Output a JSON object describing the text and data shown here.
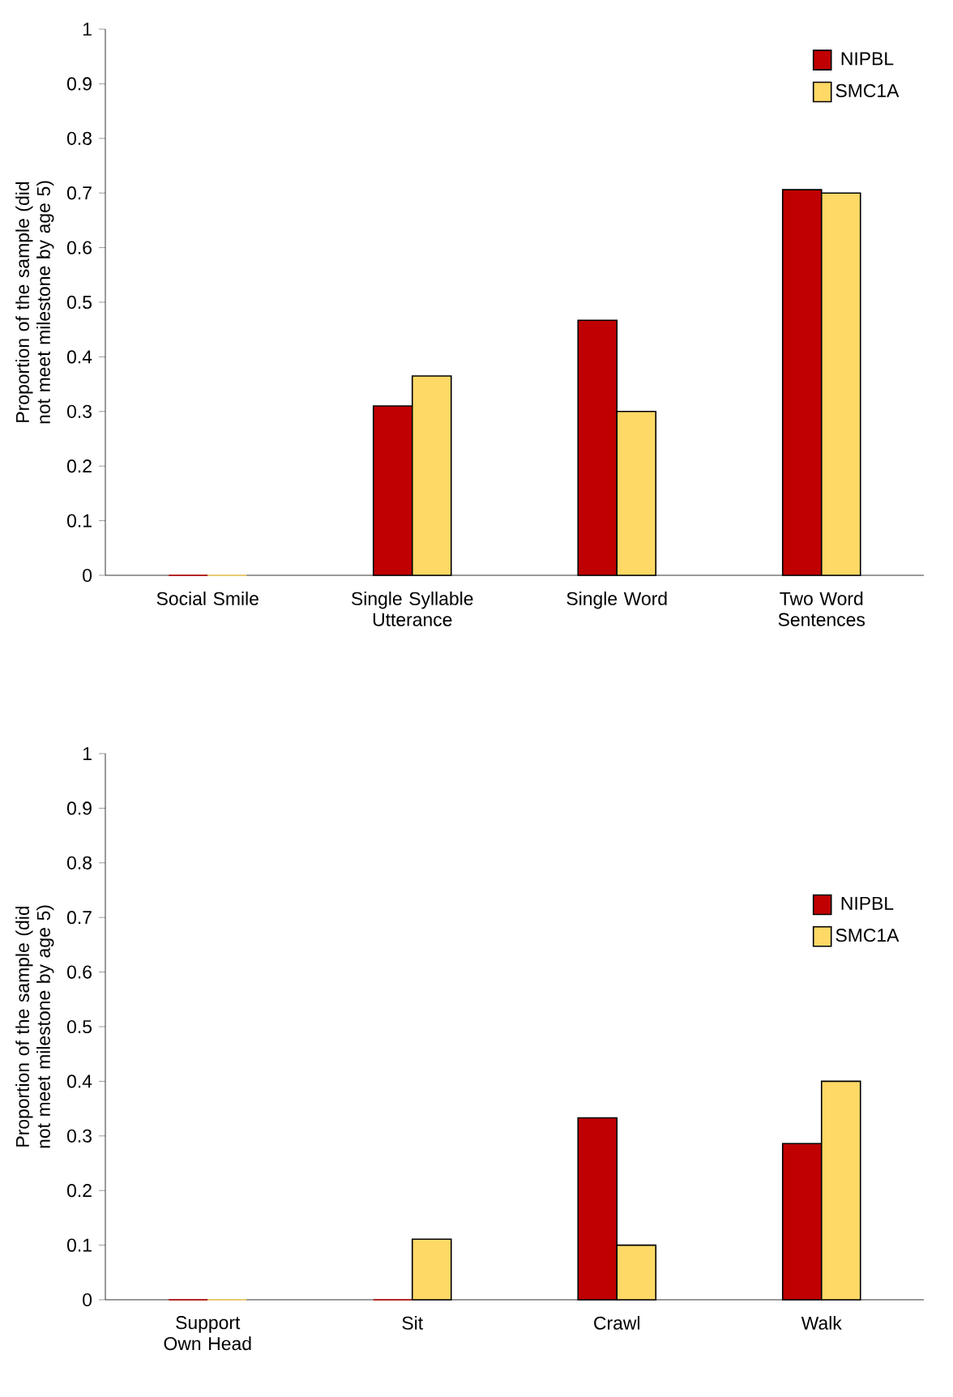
{
  "chart_data": [
    {
      "type": "bar",
      "ylabel": "Proportion of the sample (did not meet milestone by age 5)",
      "categories": [
        "Social Smile",
        "Single Syllable Utterance",
        "Single Word",
        "Two Word Sentences"
      ],
      "series": [
        {
          "name": "NIPBL",
          "color": "#c00000",
          "values": [
            0,
            0.31,
            0.467,
            0.706
          ]
        },
        {
          "name": "SMC1A",
          "color": "#ffd966",
          "values": [
            0,
            0.365,
            0.3,
            0.7
          ]
        }
      ],
      "ylim": [
        0,
        1
      ],
      "yticks": [
        0,
        0.1,
        0.2,
        0.3,
        0.4,
        0.5,
        0.6,
        0.7,
        0.8,
        0.9,
        1
      ],
      "legend": "top right",
      "grid": false
    },
    {
      "type": "bar",
      "ylabel": "Proportion of the sample (did not meet milestone by age 5)",
      "categories": [
        "Support Own Head",
        "Sit",
        "Crawl",
        "Walk"
      ],
      "series": [
        {
          "name": "NIPBL",
          "color": "#c00000",
          "values": [
            0,
            0,
            0.333,
            0.286
          ]
        },
        {
          "name": "SMC1A",
          "color": "#ffd966",
          "values": [
            0,
            0.111,
            0.1,
            0.4
          ]
        }
      ],
      "ylim": [
        0,
        1
      ],
      "yticks": [
        0,
        0.1,
        0.2,
        0.3,
        0.4,
        0.5,
        0.6,
        0.7,
        0.8,
        0.9,
        1
      ],
      "legend": "right",
      "grid": false
    }
  ]
}
